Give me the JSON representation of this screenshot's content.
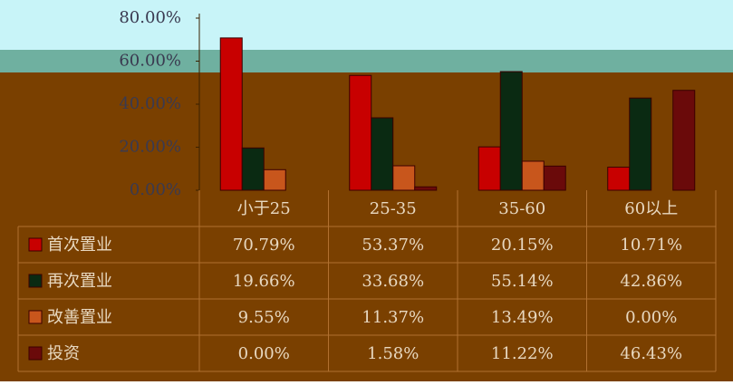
{
  "chart_data": {
    "type": "bar",
    "categories": [
      "小于25",
      "25-35",
      "35-60",
      "60以上"
    ],
    "series": [
      {
        "name": "首次置业",
        "color": "#c80000",
        "values": [
          70.79,
          53.37,
          20.15,
          10.71
        ],
        "value_labels": [
          "70.79%",
          "53.37%",
          "20.15%",
          "10.71%"
        ]
      },
      {
        "name": "再次置业",
        "color": "#0a2a12",
        "values": [
          19.66,
          33.68,
          55.14,
          42.86
        ],
        "value_labels": [
          "19.66%",
          "33.68%",
          "55.14%",
          "42.86%"
        ]
      },
      {
        "name": "改善置业",
        "color": "#c8561c",
        "values": [
          9.55,
          11.37,
          13.49,
          0
        ],
        "value_labels": [
          "9.55%",
          "11.37%",
          "13.49%",
          "0.00%"
        ]
      },
      {
        "name": "投资",
        "color": "#6a0a0a",
        "values": [
          0,
          1.58,
          11.22,
          46.43
        ],
        "value_labels": [
          "0.00%",
          "1.58%",
          "11.22%",
          "46.43%"
        ]
      }
    ],
    "ylim": [
      0,
      80
    ],
    "yticks": [
      {
        "value": 0,
        "label": "0.00%"
      },
      {
        "value": 20,
        "label": "20.00%"
      },
      {
        "value": 40,
        "label": "40.00%"
      },
      {
        "value": 60,
        "label": "60.00%"
      },
      {
        "value": 80,
        "label": "80.00%"
      }
    ],
    "grid": false
  }
}
